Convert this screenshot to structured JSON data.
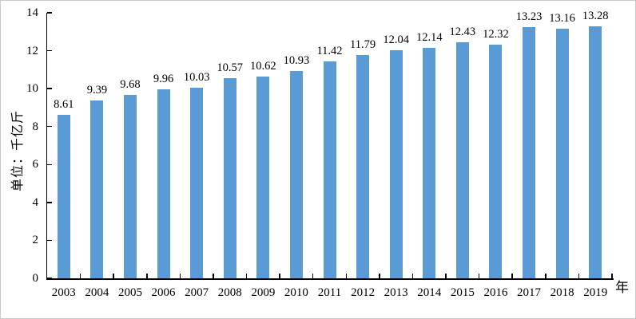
{
  "frame": {
    "background": "#ffffff",
    "border_color": "#c9c9c9"
  },
  "colors": {
    "bar": "#5B9BD5",
    "axis": "#000000",
    "text": "#000000"
  },
  "chart_data": {
    "type": "bar",
    "categories": [
      "2003",
      "2004",
      "2005",
      "2006",
      "2007",
      "2008",
      "2009",
      "2010",
      "2011",
      "2012",
      "2013",
      "2014",
      "2015",
      "2016",
      "2017",
      "2018",
      "2019"
    ],
    "values": [
      8.61,
      9.39,
      9.68,
      9.96,
      10.03,
      10.57,
      10.62,
      10.93,
      11.42,
      11.79,
      12.04,
      12.14,
      12.43,
      12.32,
      13.23,
      13.16,
      13.28
    ],
    "value_labels_shown": true,
    "value_label_decimals": 2,
    "xlabel": "年",
    "ylabel": "单位：千亿斤",
    "ylim": [
      0,
      14
    ],
    "ytick_step": 2,
    "yticks": [
      0,
      2,
      4,
      6,
      8,
      10,
      12,
      14
    ],
    "grid": false,
    "legend_position": "none"
  }
}
